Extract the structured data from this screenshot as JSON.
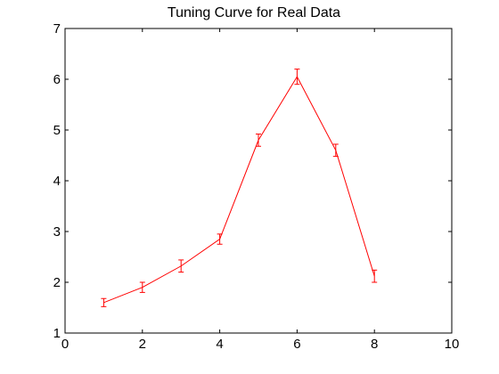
{
  "chart_data": {
    "type": "line",
    "title": "Tuning Curve for Real Data",
    "xlabel": "",
    "ylabel": "",
    "xlim": [
      0,
      10
    ],
    "ylim": [
      1,
      7
    ],
    "x_ticks": [
      "0",
      "2",
      "4",
      "6",
      "8",
      "10"
    ],
    "y_ticks": [
      "1",
      "2",
      "3",
      "4",
      "5",
      "6",
      "7"
    ],
    "grid": false,
    "legend": "none",
    "series": [
      {
        "x": [
          1,
          2,
          3,
          4,
          5,
          6,
          7,
          8
        ],
        "y": [
          1.6,
          1.9,
          2.32,
          2.85,
          4.8,
          6.05,
          4.6,
          2.12
        ],
        "error": [
          0.08,
          0.1,
          0.12,
          0.1,
          0.12,
          0.15,
          0.12,
          0.12
        ],
        "color": "#ff0000"
      }
    ]
  }
}
